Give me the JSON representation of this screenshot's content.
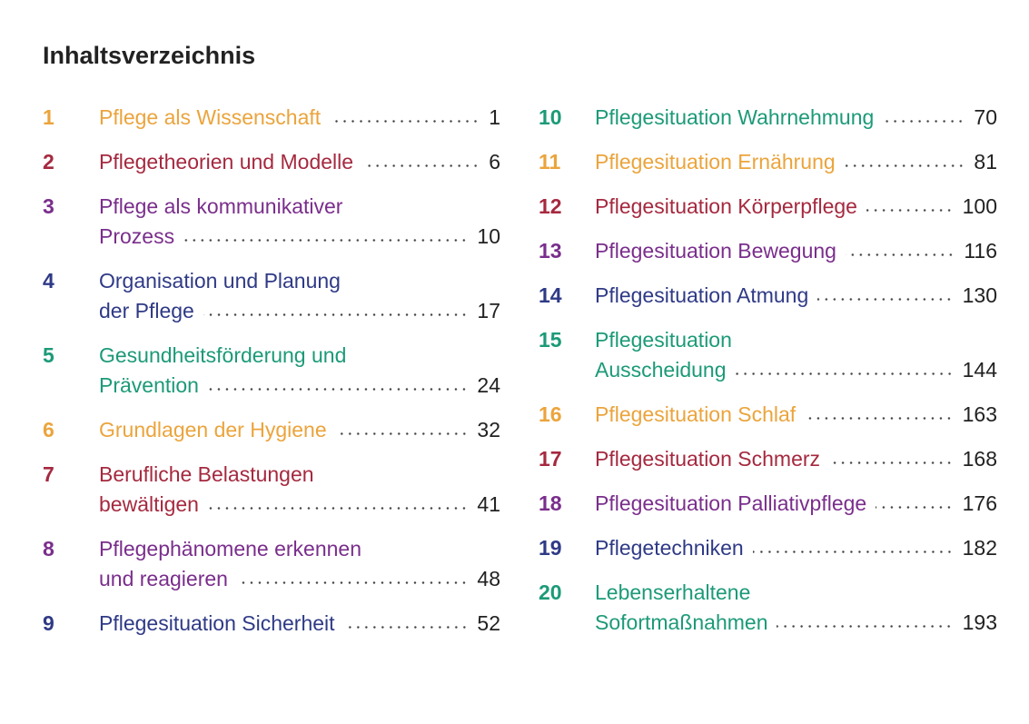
{
  "title": "Inhaltsverzeichnis",
  "columns": [
    {
      "entries": [
        {
          "number": 1,
          "lines": [
            "Pflege als Wissenschaft"
          ],
          "page": 1,
          "color": "#eba43c"
        },
        {
          "number": 2,
          "lines": [
            "Pflegetheorien und Modelle"
          ],
          "page": 6,
          "color": "#a5293f"
        },
        {
          "number": 3,
          "lines": [
            "Pflege als kommunikativer",
            "Prozess"
          ],
          "page": 10,
          "color": "#7a2e8c"
        },
        {
          "number": 4,
          "lines": [
            "Organisation und Planung",
            "der Pflege"
          ],
          "page": 17,
          "color": "#2f3a86"
        },
        {
          "number": 5,
          "lines": [
            "Gesundheitsförderung und",
            "Prävention"
          ],
          "page": 24,
          "color": "#1c9a78"
        },
        {
          "number": 6,
          "lines": [
            "Grundlagen der Hygiene"
          ],
          "page": 32,
          "color": "#eba43c"
        },
        {
          "number": 7,
          "lines": [
            "Berufliche Belastungen",
            "bewältigen"
          ],
          "page": 41,
          "color": "#a5293f"
        },
        {
          "number": 8,
          "lines": [
            "Pflegephänomene erkennen",
            "und reagieren"
          ],
          "page": 48,
          "color": "#7a2e8c"
        },
        {
          "number": 9,
          "lines": [
            "Pflegesituation Sicherheit"
          ],
          "page": 52,
          "color": "#2f3a86"
        }
      ]
    },
    {
      "entries": [
        {
          "number": 10,
          "lines": [
            "Pflegesituation Wahrnehmung"
          ],
          "page": 70,
          "color": "#1c9a78"
        },
        {
          "number": 11,
          "lines": [
            "Pflegesituation Ernährung"
          ],
          "page": 81,
          "color": "#eba43c"
        },
        {
          "number": 12,
          "lines": [
            "Pflegesituation Körperpflege"
          ],
          "page": 100,
          "color": "#a5293f"
        },
        {
          "number": 13,
          "lines": [
            "Pflegesituation Bewegung"
          ],
          "page": 116,
          "color": "#7a2e8c"
        },
        {
          "number": 14,
          "lines": [
            "Pflegesituation Atmung"
          ],
          "page": 130,
          "color": "#2f3a86"
        },
        {
          "number": 15,
          "lines": [
            "Pflegesituation",
            "Ausscheidung"
          ],
          "page": 144,
          "color": "#1c9a78"
        },
        {
          "number": 16,
          "lines": [
            "Pflegesituation Schlaf"
          ],
          "page": 163,
          "color": "#eba43c"
        },
        {
          "number": 17,
          "lines": [
            "Pflegesituation Schmerz"
          ],
          "page": 168,
          "color": "#a5293f"
        },
        {
          "number": 18,
          "lines": [
            "Pflegesituation Palliativpflege"
          ],
          "page": 176,
          "color": "#7a2e8c"
        },
        {
          "number": 19,
          "lines": [
            "Pflegetechniken"
          ],
          "page": 182,
          "color": "#2f3a86"
        },
        {
          "number": 20,
          "lines": [
            "Lebenserhaltene",
            "Sofortmaßnahmen"
          ],
          "page": 193,
          "color": "#1c9a78"
        }
      ]
    }
  ]
}
